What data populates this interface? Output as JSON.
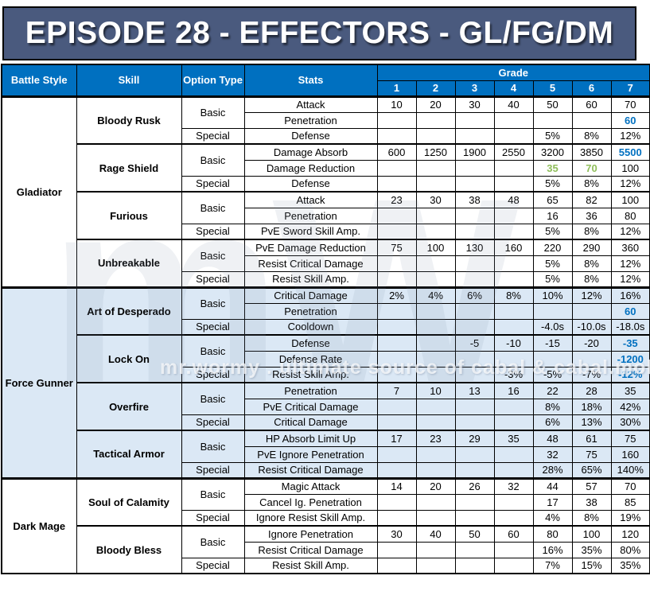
{
  "title": "EPISODE 28 - EFFECTORS - GL/FG/DM",
  "watermark": {
    "logo": "mW",
    "caption": "mr.wormy . ultimate source of cabal & cabal.mobile"
  },
  "colors": {
    "accent_blue": "#0070C0",
    "value_green": "#8FBE5A",
    "band_blue": "#DBE8F5",
    "banner_bg": "#4A5A7E"
  },
  "table": {
    "headers": {
      "battle_style": "Battle Style",
      "skill": "Skill",
      "option_type": "Option Type",
      "stats": "Stats",
      "grade": "Grade",
      "grade_levels": [
        "1",
        "2",
        "3",
        "4",
        "5",
        "6",
        "7"
      ]
    },
    "option_types": {
      "basic": "Basic",
      "special": "Special"
    },
    "groups": [
      {
        "battle_style": "Gladiator",
        "band": "white",
        "skills": [
          {
            "name": "Bloody Rusk",
            "rows": [
              {
                "stat": "Attack",
                "values": [
                  "10",
                  "20",
                  "30",
                  "40",
                  "50",
                  "60",
                  "70"
                ]
              },
              {
                "stat": "Penetration",
                "values": [
                  "",
                  "",
                  "",
                  "",
                  "",
                  "",
                  "60"
                ],
                "hl": {
                  "6": "blue"
                }
              },
              {
                "stat": "Defense",
                "values": [
                  "",
                  "",
                  "",
                  "",
                  "5%",
                  "8%",
                  "12%"
                ]
              }
            ]
          },
          {
            "name": "Rage Shield",
            "rows": [
              {
                "stat": "Damage Absorb",
                "values": [
                  "600",
                  "1250",
                  "1900",
                  "2550",
                  "3200",
                  "3850",
                  "5500"
                ],
                "hl": {
                  "6": "blue"
                }
              },
              {
                "stat": "Damage Reduction",
                "values": [
                  "",
                  "",
                  "",
                  "",
                  "35",
                  "70",
                  "100"
                ],
                "hl": {
                  "4": "green",
                  "5": "green"
                }
              },
              {
                "stat": "Defense",
                "values": [
                  "",
                  "",
                  "",
                  "",
                  "5%",
                  "8%",
                  "12%"
                ]
              }
            ]
          },
          {
            "name": "Furious",
            "rows": [
              {
                "stat": "Attack",
                "values": [
                  "23",
                  "30",
                  "38",
                  "48",
                  "65",
                  "82",
                  "100"
                ]
              },
              {
                "stat": "Penetration",
                "values": [
                  "",
                  "",
                  "",
                  "",
                  "16",
                  "36",
                  "80"
                ]
              },
              {
                "stat": "PvE Sword Skill Amp.",
                "values": [
                  "",
                  "",
                  "",
                  "",
                  "5%",
                  "8%",
                  "12%"
                ]
              }
            ]
          },
          {
            "name": "Unbreakable",
            "rows": [
              {
                "stat": "PvE Damage Reduction",
                "values": [
                  "75",
                  "100",
                  "130",
                  "160",
                  "220",
                  "290",
                  "360"
                ]
              },
              {
                "stat": "Resist Critical Damage",
                "values": [
                  "",
                  "",
                  "",
                  "",
                  "5%",
                  "8%",
                  "12%"
                ]
              },
              {
                "stat": "Resist Skill Amp.",
                "values": [
                  "",
                  "",
                  "",
                  "",
                  "5%",
                  "8%",
                  "12%"
                ]
              }
            ]
          }
        ]
      },
      {
        "battle_style": "Force Gunner",
        "band": "blue",
        "skills": [
          {
            "name": "Art of Desperado",
            "rows": [
              {
                "stat": "Critical Damage",
                "values": [
                  "2%",
                  "4%",
                  "6%",
                  "8%",
                  "10%",
                  "12%",
                  "16%"
                ]
              },
              {
                "stat": "Penetration",
                "values": [
                  "",
                  "",
                  "",
                  "",
                  "",
                  "",
                  "60"
                ],
                "hl": {
                  "6": "blue"
                }
              },
              {
                "stat": "Cooldown",
                "values": [
                  "",
                  "",
                  "",
                  "",
                  "-4.0s",
                  "-10.0s",
                  "-18.0s"
                ]
              }
            ]
          },
          {
            "name": "Lock On",
            "rows": [
              {
                "stat": "Defense",
                "values": [
                  "",
                  "",
                  "-5",
                  "-10",
                  "-15",
                  "-20",
                  "-35"
                ],
                "hl": {
                  "6": "blue"
                }
              },
              {
                "stat": "Defense Rate",
                "values": [
                  "",
                  "",
                  "",
                  "",
                  "",
                  "",
                  "-1200"
                ],
                "hl": {
                  "6": "blue"
                }
              },
              {
                "stat": "Resist Skill Amp.",
                "values": [
                  "",
                  "",
                  "",
                  "-3%",
                  "-5%",
                  "-7%",
                  "-12%"
                ],
                "hl": {
                  "6": "blue"
                }
              }
            ]
          },
          {
            "name": "Overfire",
            "rows": [
              {
                "stat": "Penetration",
                "values": [
                  "7",
                  "10",
                  "13",
                  "16",
                  "22",
                  "28",
                  "35"
                ]
              },
              {
                "stat": "PvE Critical Damage",
                "values": [
                  "",
                  "",
                  "",
                  "",
                  "8%",
                  "18%",
                  "42%"
                ]
              },
              {
                "stat": "Critical Damage",
                "values": [
                  "",
                  "",
                  "",
                  "",
                  "6%",
                  "13%",
                  "30%"
                ]
              }
            ]
          },
          {
            "name": "Tactical Armor",
            "rows": [
              {
                "stat": "HP Absorb Limit Up",
                "values": [
                  "17",
                  "23",
                  "29",
                  "35",
                  "48",
                  "61",
                  "75"
                ]
              },
              {
                "stat": "PvE Ignore Penetration",
                "values": [
                  "",
                  "",
                  "",
                  "",
                  "32",
                  "75",
                  "160"
                ]
              },
              {
                "stat": "Resist Critical Damage",
                "values": [
                  "",
                  "",
                  "",
                  "",
                  "28%",
                  "65%",
                  "140%"
                ]
              }
            ]
          }
        ]
      },
      {
        "battle_style": "Dark Mage",
        "band": "white",
        "skills": [
          {
            "name": "Soul of Calamity",
            "rows": [
              {
                "stat": "Magic Attack",
                "values": [
                  "14",
                  "20",
                  "26",
                  "32",
                  "44",
                  "57",
                  "70"
                ]
              },
              {
                "stat": "Cancel Ig. Penetration",
                "values": [
                  "",
                  "",
                  "",
                  "",
                  "17",
                  "38",
                  "85"
                ]
              },
              {
                "stat": "Ignore Resist Skill Amp.",
                "values": [
                  "",
                  "",
                  "",
                  "",
                  "4%",
                  "8%",
                  "19%"
                ]
              }
            ]
          },
          {
            "name": "Bloody Bless",
            "rows": [
              {
                "stat": "Ignore Penetration",
                "values": [
                  "30",
                  "40",
                  "50",
                  "60",
                  "80",
                  "100",
                  "120"
                ]
              },
              {
                "stat": "Resist Critical Damage",
                "values": [
                  "",
                  "",
                  "",
                  "",
                  "16%",
                  "35%",
                  "80%"
                ]
              },
              {
                "stat": "Resist Skill Amp.",
                "values": [
                  "",
                  "",
                  "",
                  "",
                  "7%",
                  "15%",
                  "35%"
                ]
              }
            ]
          }
        ]
      }
    ]
  }
}
